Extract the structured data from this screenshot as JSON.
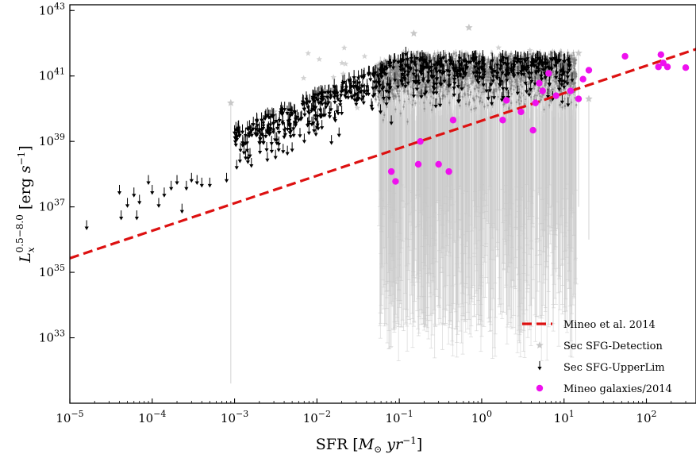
{
  "chart_data": {
    "type": "scatter",
    "title": "",
    "xlabel": "SFR [M⊙ yr⁻¹]",
    "ylabel": "Lₓ^{0.5−8.0} [erg s⁻¹]",
    "xscale": "log",
    "yscale": "log",
    "xlim": [
      1e-05,
      400
    ],
    "ylim": [
      1e+31,
      1.5e+43
    ],
    "x_ticks": [
      {
        "value": 1e-05,
        "base": "10",
        "exp": "−5"
      },
      {
        "value": 0.0001,
        "base": "10",
        "exp": "−4"
      },
      {
        "value": 0.001,
        "base": "10",
        "exp": "−3"
      },
      {
        "value": 0.01,
        "base": "10",
        "exp": "−2"
      },
      {
        "value": 0.1,
        "base": "10",
        "exp": "−1"
      },
      {
        "value": 1,
        "base": "10",
        "exp": "0"
      },
      {
        "value": 10,
        "base": "10",
        "exp": "1"
      },
      {
        "value": 100,
        "base": "10",
        "exp": "2"
      }
    ],
    "y_ticks": [
      {
        "value": 1e+33,
        "base": "10",
        "exp": "33"
      },
      {
        "value": 1e+35,
        "base": "10",
        "exp": "35"
      },
      {
        "value": 1e+37,
        "base": "10",
        "exp": "37"
      },
      {
        "value": 1e+39,
        "base": "10",
        "exp": "39"
      },
      {
        "value": 1e+41,
        "base": "10",
        "exp": "41"
      },
      {
        "value": 1e+43,
        "base": "10",
        "exp": "43"
      }
    ],
    "legend_position": "lower-right",
    "legend": [
      {
        "label": "Mineo et al. 2014",
        "marker": "dashed-line",
        "color": "#dd1111"
      },
      {
        "label": "Sec SFG-Detection",
        "marker": "star",
        "color": "#c8c8c8"
      },
      {
        "label": "Sec SFG-UpperLim",
        "marker": "down-arrow",
        "color": "#000000"
      },
      {
        "label": "Mineo galaxies/2014",
        "marker": "circle",
        "color": "#ee11ee"
      }
    ],
    "series": [
      {
        "name": "Mineo et al. 2014",
        "kind": "line",
        "style": "dashed",
        "color": "#dd1111",
        "x": [
          1e-05,
          400
        ],
        "y": [
          2.7e+35,
          6.6e+41
        ]
      },
      {
        "name": "Sec SFG-Detection",
        "kind": "scatter-with-errorbars",
        "color": "#c8c8c8",
        "note": "dense cloud of several thousand detections; representative points listed",
        "points": [
          {
            "x": 0.0009,
            "y": 1.5e+40,
            "ylo": 4e+31
          },
          {
            "x": 0.003,
            "y": 8e+39
          },
          {
            "x": 0.15,
            "y": 2e+42
          },
          {
            "x": 0.7,
            "y": 3e+42
          },
          {
            "x": 0.08,
            "y": 5e+40,
            "ylo": 1e+34
          },
          {
            "x": 0.2,
            "y": 8e+40,
            "ylo": 2e+33
          },
          {
            "x": 0.5,
            "y": 1e+41,
            "ylo": 1e+34
          },
          {
            "x": 1.0,
            "y": 1.2e+41,
            "ylo": 2e+34
          },
          {
            "x": 2.0,
            "y": 1.5e+41,
            "ylo": 5e+33
          },
          {
            "x": 4.0,
            "y": 2e+41,
            "ylo": 1e+34
          },
          {
            "x": 8.0,
            "y": 1.5e+41,
            "ylo": 1e+35
          },
          {
            "x": 15,
            "y": 5e+41,
            "ylo": 1e+37
          },
          {
            "x": 20,
            "y": 2e+40,
            "ylo": 1e+36
          }
        ]
      },
      {
        "name": "Sec SFG-UpperLim",
        "kind": "upper-limit-arrows",
        "color": "#000000",
        "points": [
          {
            "x": 1.6e-05,
            "y": 2.5e+36
          },
          {
            "x": 4e-05,
            "y": 3e+37
          },
          {
            "x": 4.2e-05,
            "y": 5e+36
          },
          {
            "x": 5e-05,
            "y": 1.2e+37
          },
          {
            "x": 6e-05,
            "y": 2.5e+37
          },
          {
            "x": 6.5e-05,
            "y": 5e+36
          },
          {
            "x": 7e-05,
            "y": 1.5e+37
          },
          {
            "x": 9e-05,
            "y": 6e+37
          },
          {
            "x": 0.0001,
            "y": 3e+37
          },
          {
            "x": 0.00012,
            "y": 1.2e+37
          },
          {
            "x": 0.00014,
            "y": 2.5e+37
          },
          {
            "x": 0.00017,
            "y": 4e+37
          },
          {
            "x": 0.0002,
            "y": 6e+37
          },
          {
            "x": 0.00023,
            "y": 8e+36
          },
          {
            "x": 0.00026,
            "y": 4e+37
          },
          {
            "x": 0.0003,
            "y": 7e+37
          },
          {
            "x": 0.00035,
            "y": 6e+37
          },
          {
            "x": 0.0004,
            "y": 5e+37
          },
          {
            "x": 0.0005,
            "y": 5e+37
          },
          {
            "x": 0.0008,
            "y": 7e+37
          },
          {
            "x": 0.001,
            "y": 2e+39
          },
          {
            "x": 0.0013,
            "y": 5e+38
          },
          {
            "x": 0.0016,
            "y": 2e+38
          },
          {
            "x": 0.002,
            "y": 1e+39
          },
          {
            "x": 0.0025,
            "y": 3e+38
          },
          {
            "x": 0.003,
            "y": 4e+39
          },
          {
            "x": 0.004,
            "y": 1.5e+39
          },
          {
            "x": 0.005,
            "y": 6e+38
          },
          {
            "x": 0.006,
            "y": 5e+39
          },
          {
            "x": 0.008,
            "y": 2e+39
          },
          {
            "x": 0.01,
            "y": 3e+39
          },
          {
            "x": 0.015,
            "y": 1e+39
          },
          {
            "x": 0.02,
            "y": 8e+39
          },
          {
            "x": 0.03,
            "y": 1.5e+40
          },
          {
            "x": 0.05,
            "y": 3e+40
          },
          {
            "x": 0.08,
            "y": 4e+39
          },
          {
            "x": 0.12,
            "y": 5e+41
          },
          {
            "x": 0.3,
            "y": 3e+41
          },
          {
            "x": 1.0,
            "y": 2e+41
          },
          {
            "x": 3.0,
            "y": 1.5e+41
          },
          {
            "x": 8.0,
            "y": 1e+41
          },
          {
            "x": 10,
            "y": 5e+40
          }
        ]
      },
      {
        "name": "Mineo galaxies/2014",
        "kind": "scatter",
        "color": "#ee11ee",
        "points": [
          {
            "x": 0.08,
            "y": 1.2e+38
          },
          {
            "x": 0.09,
            "y": 6e+37
          },
          {
            "x": 0.17,
            "y": 2e+38
          },
          {
            "x": 0.18,
            "y": 1e+39
          },
          {
            "x": 0.3,
            "y": 2e+38
          },
          {
            "x": 0.4,
            "y": 1.2e+38
          },
          {
            "x": 0.45,
            "y": 4.5e+39
          },
          {
            "x": 1.8,
            "y": 4.5e+39
          },
          {
            "x": 2.0,
            "y": 1.8e+40
          },
          {
            "x": 3.0,
            "y": 8e+39
          },
          {
            "x": 4.2,
            "y": 2.2e+39
          },
          {
            "x": 4.5,
            "y": 1.5e+40
          },
          {
            "x": 5.0,
            "y": 6e+40
          },
          {
            "x": 5.5,
            "y": 3.5e+40
          },
          {
            "x": 6.5,
            "y": 1.2e+41
          },
          {
            "x": 8,
            "y": 2.5e+40
          },
          {
            "x": 12,
            "y": 3.5e+40
          },
          {
            "x": 15,
            "y": 2e+40
          },
          {
            "x": 17,
            "y": 8e+40
          },
          {
            "x": 20,
            "y": 1.5e+41
          },
          {
            "x": 55,
            "y": 4e+41
          },
          {
            "x": 140,
            "y": 1.9e+41
          },
          {
            "x": 150,
            "y": 4.5e+41
          },
          {
            "x": 160,
            "y": 2.5e+41
          },
          {
            "x": 180,
            "y": 1.9e+41
          },
          {
            "x": 300,
            "y": 1.8e+41
          }
        ]
      }
    ]
  }
}
